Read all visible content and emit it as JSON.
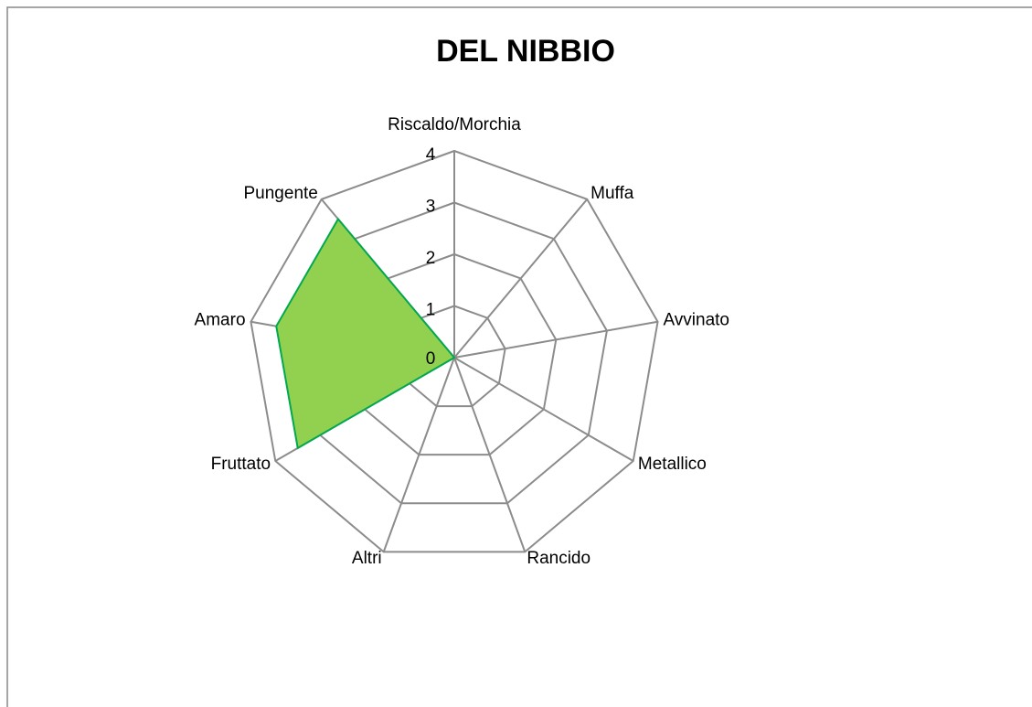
{
  "chart_data": {
    "type": "radar",
    "title": "DEL NIBBIO",
    "categories": [
      "Riscaldo/Morchia",
      "Muffa",
      "Avvinato",
      "Metallico",
      "Rancido",
      "Altri",
      "Fruttato",
      "Amaro",
      "Pungente"
    ],
    "series": [
      {
        "name": "DEL NIBBIO",
        "color": "#92d050",
        "values": [
          0,
          0,
          0,
          0,
          0,
          0,
          3.5,
          3.5,
          3.5
        ]
      }
    ],
    "ylim": [
      0,
      4
    ],
    "yticks": [
      0,
      1,
      2,
      3,
      4
    ],
    "grid": true
  }
}
